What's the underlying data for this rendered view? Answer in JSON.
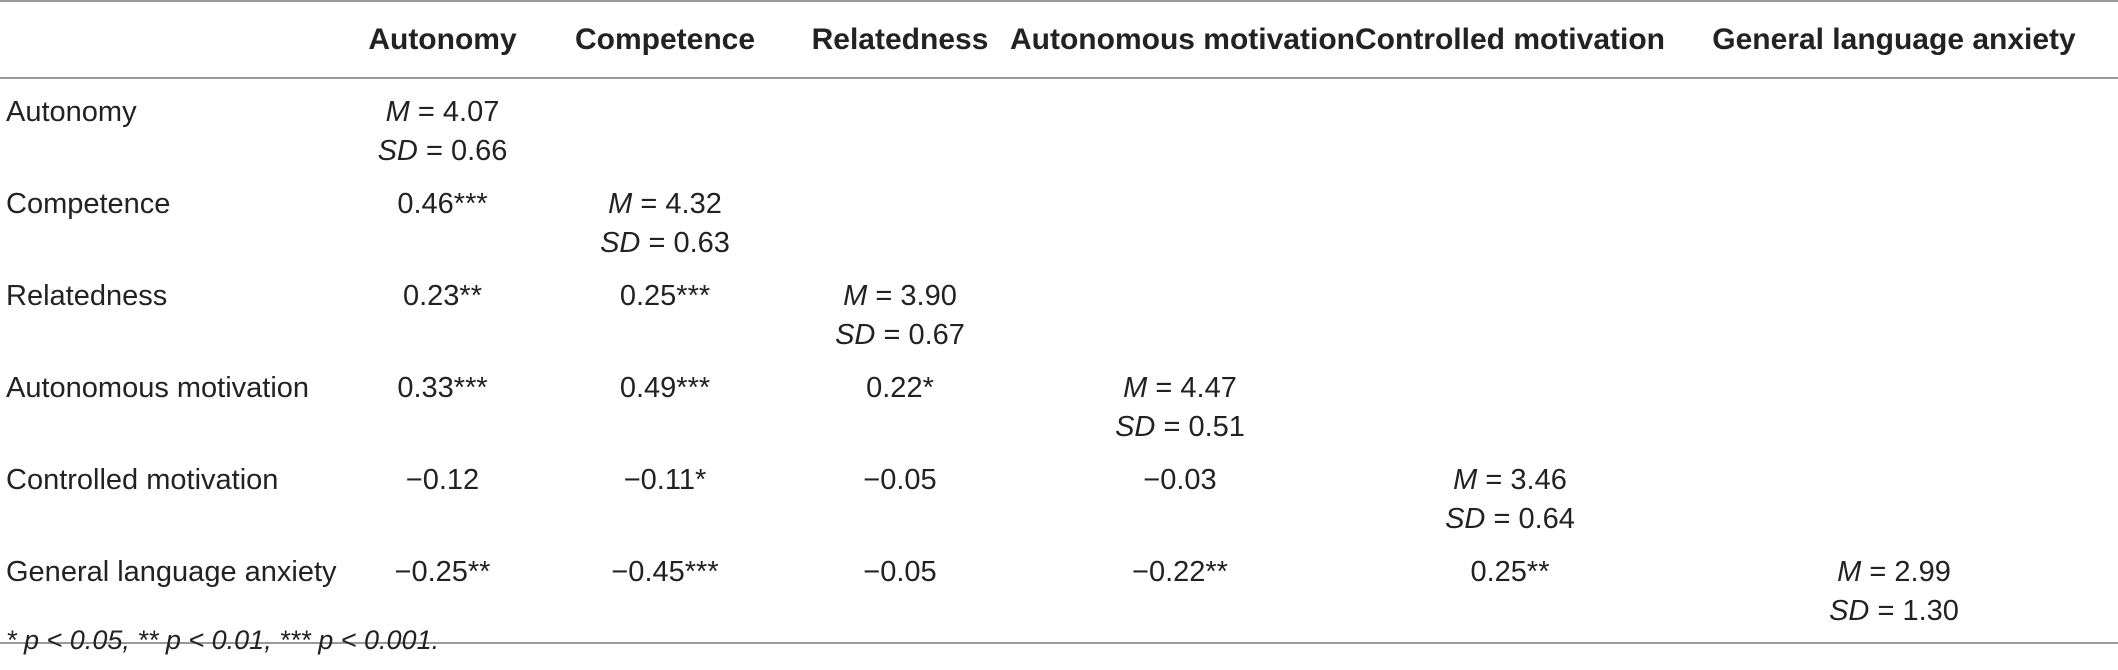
{
  "table": {
    "headers": [
      "",
      "Autonomy",
      "Competence",
      "Relatedness",
      "Autonomous motivation",
      "Controlled motivation",
      "General language anxiety"
    ],
    "rows": [
      {
        "label": "Autonomy",
        "cells": [
          {
            "m_label": "M",
            "m_value": "= 4.07",
            "sd_label": "SD",
            "sd_value": "= 0.66"
          },
          "",
          "",
          "",
          "",
          ""
        ]
      },
      {
        "label": "Competence",
        "cells": [
          "0.46***",
          {
            "m_label": "M",
            "m_value": "= 4.32",
            "sd_label": "SD",
            "sd_value": "= 0.63"
          },
          "",
          "",
          "",
          ""
        ]
      },
      {
        "label": "Relatedness",
        "cells": [
          "0.23**",
          "0.25***",
          {
            "m_label": "M",
            "m_value": "= 3.90",
            "sd_label": "SD",
            "sd_value": "= 0.67"
          },
          "",
          "",
          ""
        ]
      },
      {
        "label": "Autonomous motivation",
        "cells": [
          "0.33***",
          "0.49***",
          "0.22*",
          {
            "m_label": "M",
            "m_value": "= 4.47",
            "sd_label": "SD",
            "sd_value": "= 0.51"
          },
          "",
          ""
        ]
      },
      {
        "label": "Controlled motivation",
        "cells": [
          "−0.12",
          "−0.11*",
          "−0.05",
          "−0.03",
          {
            "m_label": "M",
            "m_value": "= 3.46",
            "sd_label": "SD",
            "sd_value": "= 0.64"
          },
          ""
        ]
      },
      {
        "label": "General language anxiety",
        "cells": [
          "−0.25**",
          "−0.45***",
          "−0.05",
          "−0.22**",
          "0.25**",
          {
            "m_label": "M",
            "m_value": "= 2.99",
            "sd_label": "SD",
            "sd_value": "= 1.30"
          }
        ]
      }
    ]
  },
  "footnote": "* p < 0.05, ** p < 0.01, *** p < 0.001."
}
